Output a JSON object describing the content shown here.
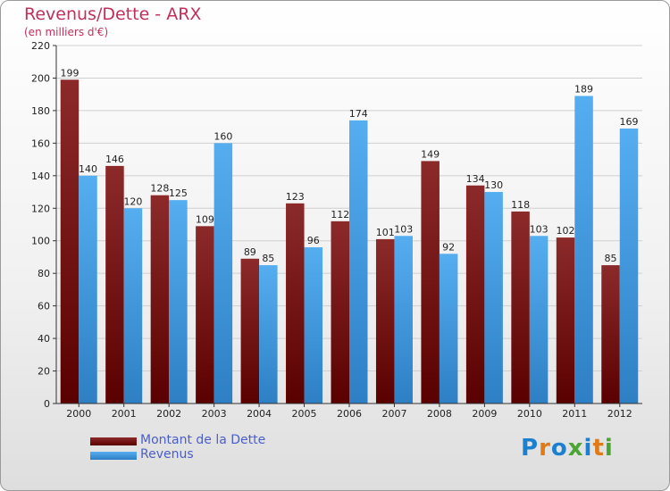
{
  "title": "Revenus/Dette - ARX",
  "subtitle": "(en milliers d'€)",
  "logo": {
    "text": "Proxiti",
    "colors": [
      "#1c80d0",
      "#e07a18",
      "#4aa532"
    ]
  },
  "chart_data": {
    "type": "bar",
    "title": "Revenus/Dette - ARX",
    "subtitle": "(en milliers d'€)",
    "categories": [
      "2000",
      "2001",
      "2002",
      "2003",
      "2004",
      "2005",
      "2006",
      "2007",
      "2008",
      "2009",
      "2010",
      "2011",
      "2012"
    ],
    "series": [
      {
        "name": "Montant de la Dette",
        "color": "#7a1818",
        "values": [
          199,
          146,
          128,
          109,
          89,
          123,
          112,
          101,
          149,
          134,
          118,
          102,
          85
        ]
      },
      {
        "name": "Revenus",
        "color": "#3f9be0",
        "values": [
          140,
          120,
          125,
          160,
          85,
          96,
          174,
          103,
          92,
          130,
          103,
          189,
          169
        ]
      }
    ],
    "ylim": [
      0,
      220
    ],
    "yticks": [
      0,
      20,
      40,
      60,
      80,
      100,
      120,
      140,
      160,
      180,
      200,
      220
    ],
    "grid": true,
    "legend": "bottom-left"
  }
}
